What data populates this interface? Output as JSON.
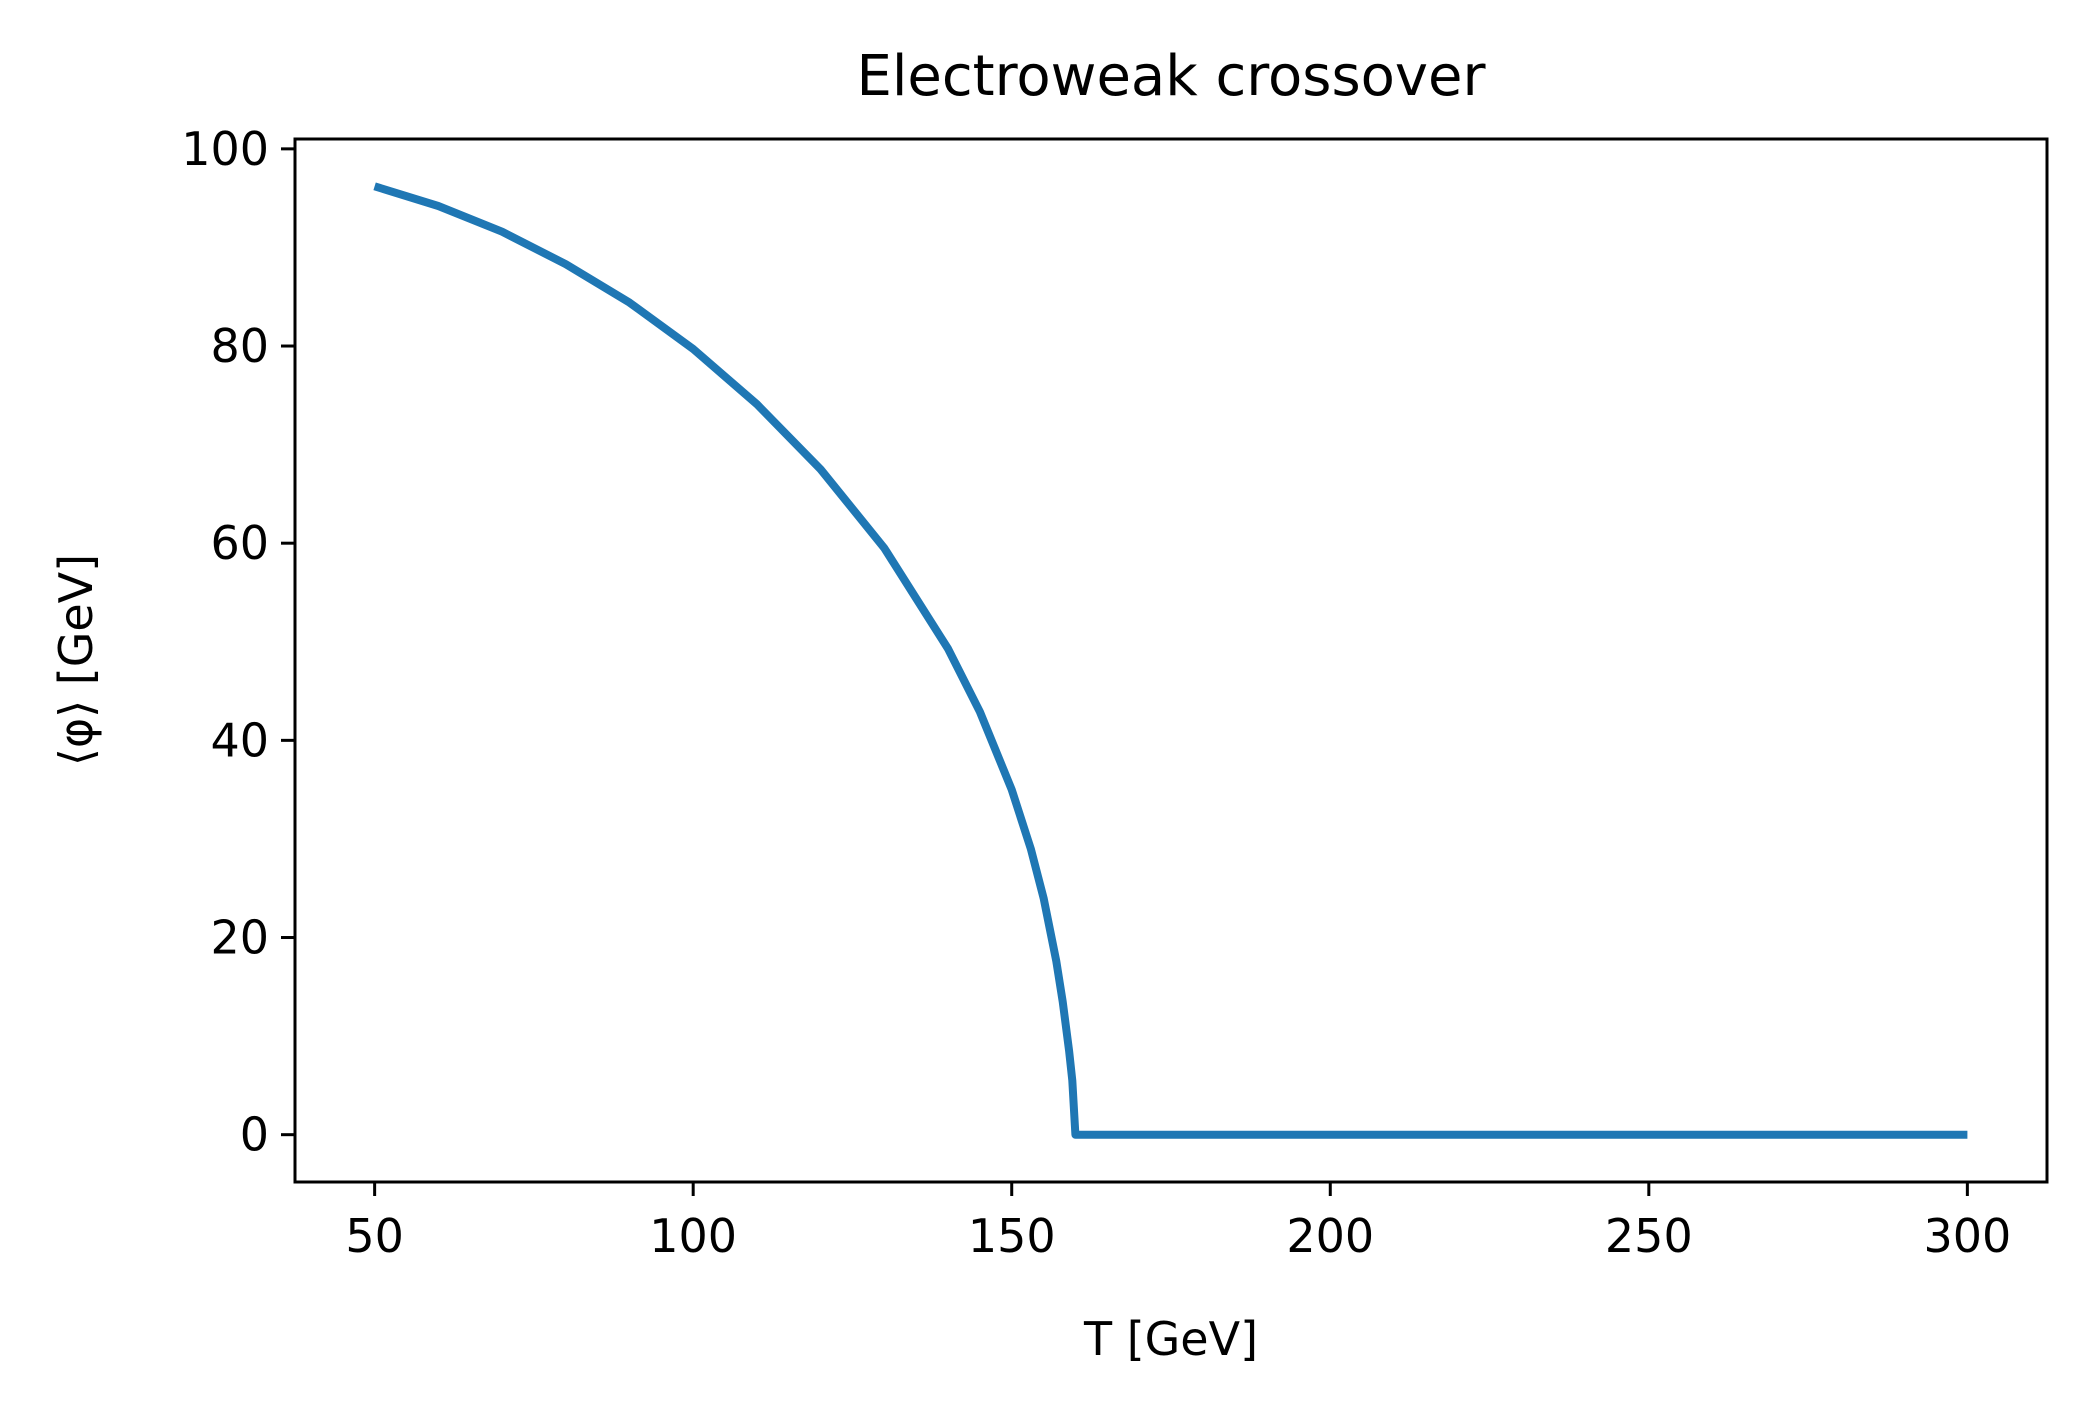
{
  "chart_data": {
    "type": "line",
    "title": "Electroweak crossover",
    "xlabel": "T [GeV]",
    "ylabel": "⟨φ⟩ [GeV]",
    "xlim": [
      37.5,
      312.5
    ],
    "ylim": [
      -4.8,
      101
    ],
    "xticks": [
      50,
      100,
      150,
      200,
      250,
      300
    ],
    "yticks": [
      0,
      20,
      40,
      60,
      80,
      100
    ],
    "grid": false,
    "legend": "none",
    "series_color": "#1f77b4",
    "series": [
      {
        "x": [
          50,
          60,
          70,
          80,
          90,
          100,
          110,
          120,
          130,
          140,
          145,
          150,
          153,
          155,
          157,
          158,
          159,
          159.5,
          160,
          170,
          180,
          190,
          200,
          210,
          220,
          230,
          240,
          250,
          260,
          270,
          280,
          290,
          300
        ],
        "y": [
          96.2,
          94.2,
          91.6,
          88.3,
          84.4,
          79.7,
          74.1,
          67.5,
          59.5,
          49.3,
          42.9,
          35.0,
          29.0,
          24.0,
          17.6,
          13.5,
          8.5,
          5.5,
          0,
          0,
          0,
          0,
          0,
          0,
          0,
          0,
          0,
          0,
          0,
          0,
          0,
          0,
          0
        ]
      }
    ]
  }
}
